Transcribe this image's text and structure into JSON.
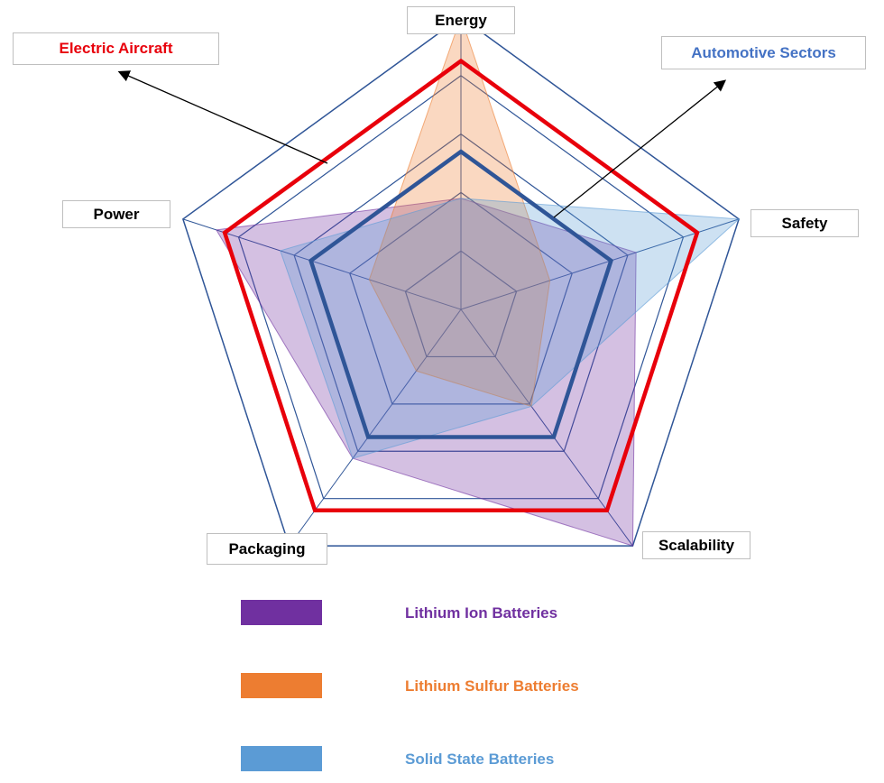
{
  "chart_data": {
    "type": "radar",
    "axes": [
      "Energy",
      "Safety",
      "Scalability",
      "Packaging",
      "Power"
    ],
    "rmax": 10,
    "grid_levels": [
      2,
      4,
      6,
      8,
      10
    ],
    "series": [
      {
        "name": "Lithium Ion Batteries",
        "values": [
          3.8,
          6.3,
          10,
          6.3,
          8.8
        ],
        "color": "#7030a0"
      },
      {
        "name": "Lithium Sulfur Batteries",
        "values": [
          10,
          3.2,
          4.1,
          2.6,
          3.3
        ],
        "color": "#ed7d31"
      },
      {
        "name": "Solid State Batteries",
        "values": [
          3.8,
          10,
          4.1,
          6.3,
          6.5
        ],
        "color": "#5b9bd5"
      }
    ],
    "highlight_rings": [
      {
        "name": "Electric Aircraft",
        "values": [
          8.5,
          8.5,
          8.5,
          8.5,
          8.5
        ],
        "color": "#e8000b"
      },
      {
        "name": "Automotive Sectors",
        "values": [
          5.4,
          5.4,
          5.4,
          5.4,
          5.4
        ],
        "color": "#2f5597"
      }
    ],
    "annotations": [
      {
        "text": "Electric Aircraft",
        "color": "#e8000b"
      },
      {
        "text": "Automotive Sectors",
        "color": "#4472c4"
      }
    ]
  }
}
